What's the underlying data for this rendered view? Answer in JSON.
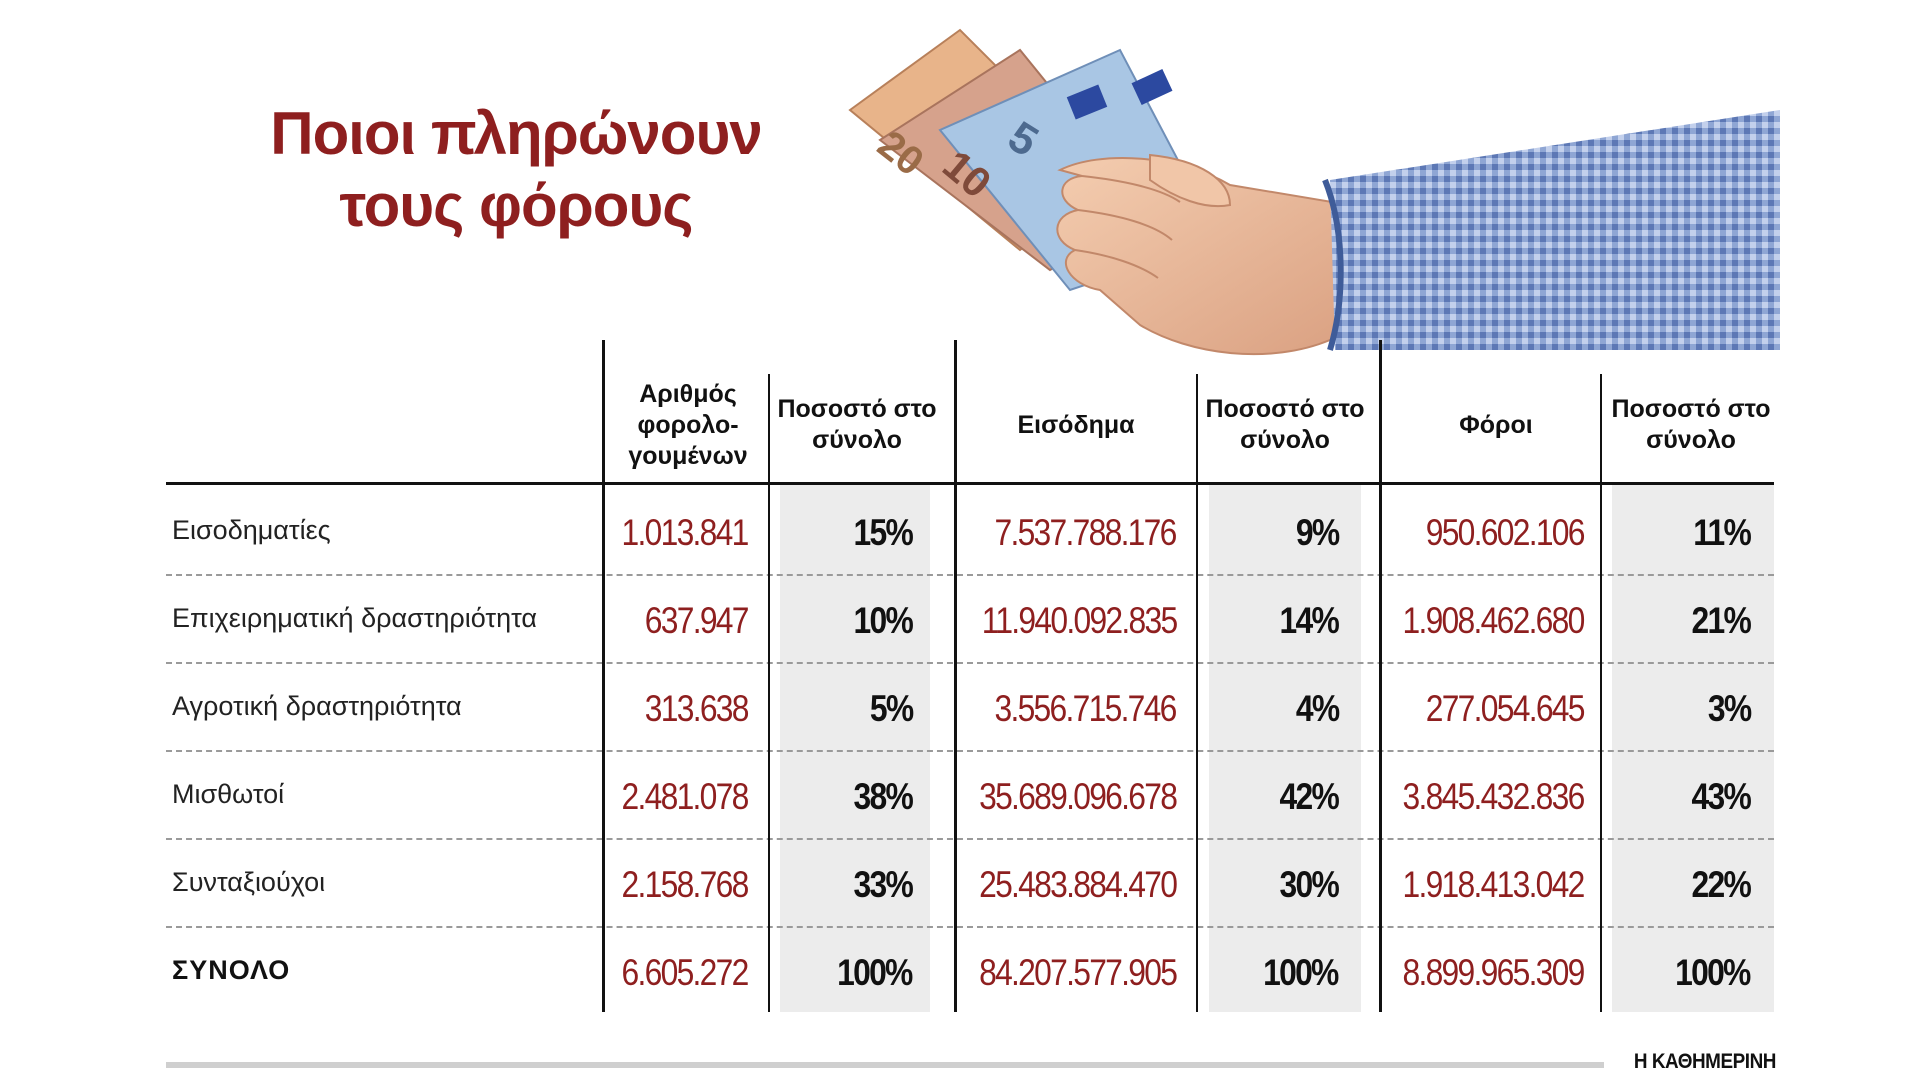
{
  "title_lines": [
    "Ποιοι πληρώνουν",
    "τους φόρους"
  ],
  "source": "Η ΚΑΘΗΜΕΡΙΝΗ",
  "colors": {
    "title": "#8e1f1f",
    "numbers": "#8e1f1f",
    "percent": "#111111",
    "shade": "#ececec"
  },
  "illustration": {
    "icon": "hand-holding-euro-banknotes-icon",
    "banknote_values": [
      "20",
      "10",
      "5"
    ]
  },
  "chart_data": {
    "type": "table",
    "columns": [
      "Αριθμός φορολο-γουμένων",
      "Ποσοστό στο σύνολο",
      "Εισόδημα",
      "Ποσοστό στο σύνολο",
      "Φόροι",
      "Ποσοστό στο σύνολο"
    ],
    "rows": [
      {
        "label": "Εισοδηματίες",
        "values": [
          "1.013.841",
          "15%",
          "7.537.788.176",
          "9%",
          "950.602.106",
          "11%"
        ]
      },
      {
        "label": "Επιχειρηματική δραστηριότητα",
        "values": [
          "637.947",
          "10%",
          "11.940.092.835",
          "14%",
          "1.908.462.680",
          "21%"
        ]
      },
      {
        "label": "Αγροτική δραστηριότητα",
        "values": [
          "313.638",
          "5%",
          "3.556.715.746",
          "4%",
          "277.054.645",
          "3%"
        ]
      },
      {
        "label": "Μισθωτοί",
        "values": [
          "2.481.078",
          "38%",
          "35.689.096.678",
          "42%",
          "3.845.432.836",
          "43%"
        ]
      },
      {
        "label": "Συνταξιούχοι",
        "values": [
          "2.158.768",
          "33%",
          "25.483.884.470",
          "30%",
          "1.918.413.042",
          "22%"
        ]
      }
    ],
    "total": {
      "label": "ΣΥΝΟΛΟ",
      "values": [
        "6.605.272",
        "100%",
        "84.207.577.905",
        "100%",
        "8.899.965.309",
        "100%"
      ]
    }
  }
}
